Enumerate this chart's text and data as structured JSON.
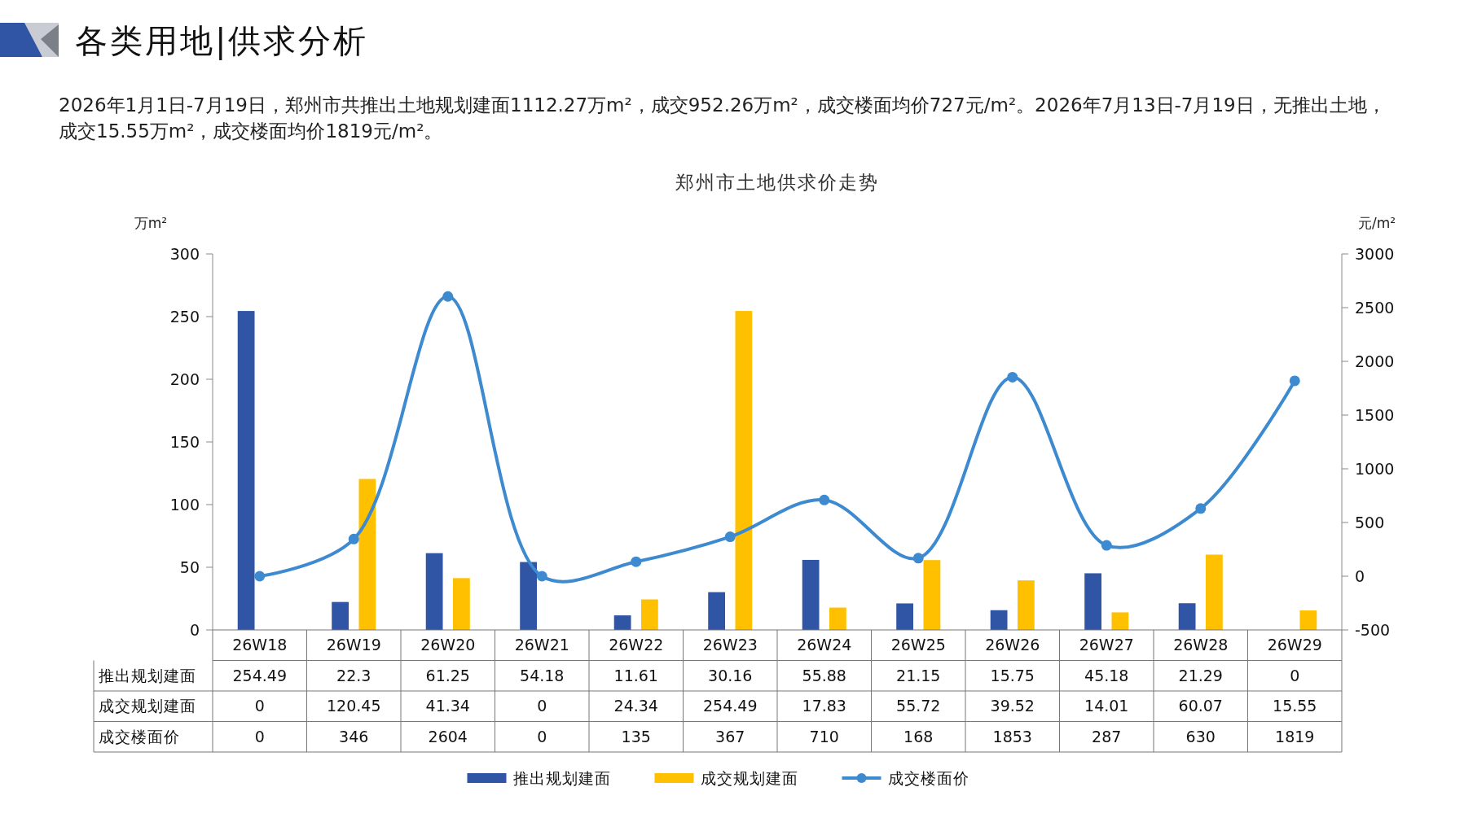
{
  "chart_data": {
    "type": "bar",
    "title": "郑州市土地供求价走势",
    "subtitle": "2026年1月1日-7月19日，郑州市共推出土地规划建面1112.27万m²，成交952.26万m²，成交楼面均价727元/m²。2026年7月13日-7月19日，无推出土地，成交15.55万m²，成交楼面均价1819元/m²。",
    "annotations": [
      "各类用地|供求分析"
    ],
    "ylabel": "万m²",
    "y2label": "元/m²",
    "categories": [
      "26W18",
      "26W19",
      "26W20",
      "26W21",
      "26W22",
      "26W23",
      "26W24",
      "26W25",
      "26W26",
      "26W27",
      "26W28",
      "26W29"
    ],
    "series": [
      {
        "name": "推出规划建面",
        "color": "#2f55a4",
        "values": [
          254.49,
          22.3,
          61.25,
          54.18,
          11.61,
          30.16,
          55.88,
          21.15,
          15.75,
          45.18,
          21.29,
          0
        ]
      },
      {
        "name": "成交规划建面",
        "color": "#ffc000",
        "values": [
          0,
          120.45,
          41.34,
          0,
          24.34,
          254.49,
          17.83,
          55.72,
          39.52,
          14.01,
          60.07,
          15.55
        ]
      },
      {
        "name": "成交楼面价",
        "type": "line",
        "axis": "y2",
        "color": "#3d8ad0",
        "marker": "circle",
        "values": [
          0,
          346,
          2604,
          0,
          135,
          367,
          710,
          168,
          1853,
          287,
          630,
          1819
        ]
      }
    ],
    "ylim": [
      0,
      300
    ],
    "yticks": [
      0,
      50,
      100,
      150,
      200,
      250,
      300
    ],
    "y2lim": [
      -500,
      3000
    ],
    "y2ticks": [
      -500,
      0,
      500,
      1000,
      1500,
      2000,
      2500,
      3000
    ],
    "data_labels": true,
    "legend": "bottom",
    "grid": false
  }
}
